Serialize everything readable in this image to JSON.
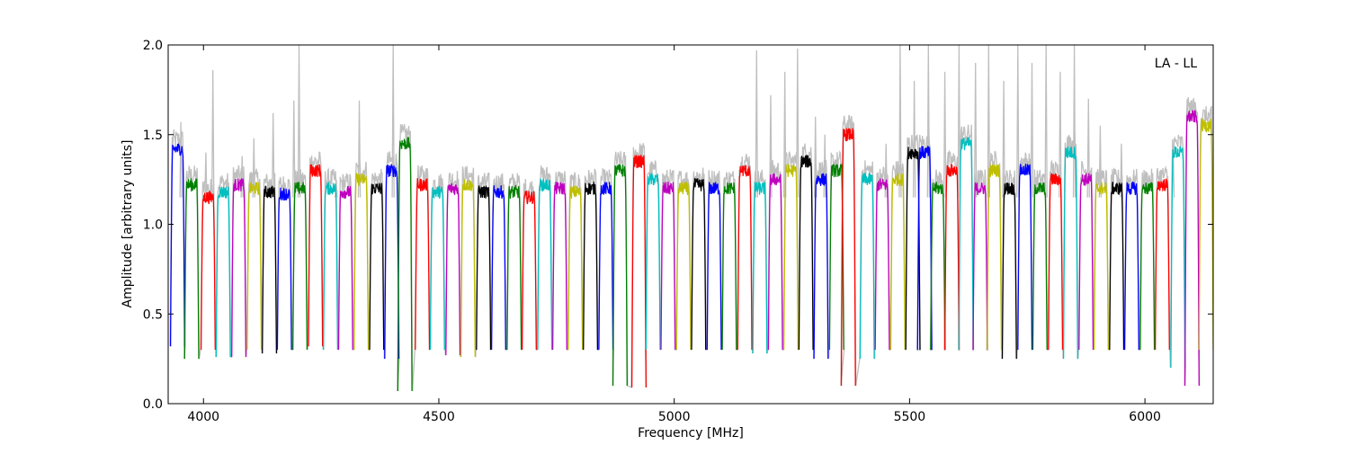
{
  "chart_data": {
    "type": "line",
    "title": "",
    "annotation": "LA - LL",
    "xlabel": "Frequency [MHz]",
    "ylabel": "Amplitude [arbitrary units]",
    "xlim": [
      3925,
      6145
    ],
    "ylim": [
      0.0,
      2.0
    ],
    "xticks": [
      4000,
      4500,
      5000,
      5500,
      6000
    ],
    "yticks": [
      0.0,
      0.5,
      1.0,
      1.5,
      2.0
    ],
    "xtick_labels": [
      "4000",
      "4500",
      "5000",
      "5500",
      "6000"
    ],
    "ytick_labels": [
      "0.0",
      "0.5",
      "1.0",
      "1.5",
      "2.0"
    ],
    "grid": false,
    "raw_color": "#bfbfbf",
    "series_colors": [
      "#0000ff",
      "#008000",
      "#ff0000",
      "#00bfbf",
      "#bf00bf",
      "#bfbf00",
      "#000000"
    ],
    "channel_width_mhz": 32,
    "channel_centers": [
      3945,
      3975,
      4010,
      4042,
      4075,
      4108,
      4140,
      4172,
      4205,
      4238,
      4270,
      4302,
      4335,
      4368,
      4400,
      4428,
      4465,
      4497,
      4530,
      4562,
      4595,
      4627,
      4660,
      4692,
      4725,
      4757,
      4790,
      4822,
      4855,
      4885,
      4925,
      4955,
      4987,
      5020,
      5052,
      5085,
      5117,
      5150,
      5182,
      5215,
      5248,
      5280,
      5312,
      5345,
      5370,
      5410,
      5442,
      5475,
      5507,
      5532,
      5560,
      5590,
      5620,
      5650,
      5680,
      5712,
      5745,
      5777,
      5810,
      5842,
      5875,
      5907,
      5940,
      5972,
      6005,
      6037,
      6070,
      6100,
      6130
    ],
    "channel_levels": [
      1.42,
      1.22,
      1.15,
      1.18,
      1.22,
      1.2,
      1.18,
      1.17,
      1.2,
      1.3,
      1.2,
      1.18,
      1.25,
      1.2,
      1.3,
      1.45,
      1.22,
      1.18,
      1.2,
      1.22,
      1.18,
      1.18,
      1.18,
      1.15,
      1.22,
      1.2,
      1.18,
      1.2,
      1.2,
      1.3,
      1.35,
      1.25,
      1.2,
      1.2,
      1.22,
      1.2,
      1.2,
      1.3,
      1.2,
      1.25,
      1.3,
      1.35,
      1.25,
      1.3,
      1.5,
      1.25,
      1.22,
      1.25,
      1.4,
      1.4,
      1.2,
      1.3,
      1.45,
      1.2,
      1.3,
      1.2,
      1.3,
      1.2,
      1.25,
      1.4,
      1.25,
      1.2,
      1.2,
      1.2,
      1.2,
      1.22,
      1.4,
      1.6,
      1.55
    ],
    "channel_dips": [
      0.32,
      0.25,
      0.3,
      0.26,
      0.26,
      0.3,
      0.28,
      0.3,
      0.3,
      0.32,
      0.3,
      0.3,
      0.3,
      0.3,
      0.25,
      0.07,
      0.3,
      0.3,
      0.27,
      0.26,
      0.3,
      0.3,
      0.3,
      0.3,
      0.3,
      0.3,
      0.3,
      0.3,
      0.3,
      0.1,
      0.09,
      0.3,
      0.3,
      0.3,
      0.3,
      0.3,
      0.3,
      0.3,
      0.28,
      0.3,
      0.3,
      0.3,
      0.25,
      0.3,
      0.1,
      0.25,
      0.3,
      0.3,
      0.3,
      0.3,
      0.3,
      0.3,
      0.3,
      0.3,
      0.3,
      0.25,
      0.3,
      0.3,
      0.3,
      0.25,
      0.3,
      0.3,
      0.3,
      0.3,
      0.3,
      0.3,
      0.2,
      0.1,
      0.3
    ],
    "raw_spikes": [
      {
        "x": 3952,
        "y": 1.57
      },
      {
        "x": 4005,
        "y": 1.4
      },
      {
        "x": 4020,
        "y": 1.86
      },
      {
        "x": 4082,
        "y": 1.38
      },
      {
        "x": 4107,
        "y": 1.48
      },
      {
        "x": 4148,
        "y": 1.62
      },
      {
        "x": 4192,
        "y": 1.69
      },
      {
        "x": 4203,
        "y": 2.0
      },
      {
        "x": 4282,
        "y": 1.25
      },
      {
        "x": 4331,
        "y": 1.69
      },
      {
        "x": 4403,
        "y": 2.0
      },
      {
        "x": 5175,
        "y": 1.97
      },
      {
        "x": 5205,
        "y": 1.72
      },
      {
        "x": 5235,
        "y": 1.85
      },
      {
        "x": 5262,
        "y": 1.98
      },
      {
        "x": 5300,
        "y": 1.6
      },
      {
        "x": 5320,
        "y": 1.5
      },
      {
        "x": 5450,
        "y": 1.45
      },
      {
        "x": 5480,
        "y": 2.0
      },
      {
        "x": 5510,
        "y": 1.8
      },
      {
        "x": 5540,
        "y": 2.0
      },
      {
        "x": 5575,
        "y": 1.85
      },
      {
        "x": 5605,
        "y": 2.0
      },
      {
        "x": 5640,
        "y": 1.9
      },
      {
        "x": 5668,
        "y": 2.0
      },
      {
        "x": 5700,
        "y": 1.8
      },
      {
        "x": 5730,
        "y": 2.0
      },
      {
        "x": 5760,
        "y": 1.9
      },
      {
        "x": 5790,
        "y": 2.0
      },
      {
        "x": 5820,
        "y": 1.85
      },
      {
        "x": 5850,
        "y": 2.0
      },
      {
        "x": 5880,
        "y": 1.7
      },
      {
        "x": 5905,
        "y": 1.55
      },
      {
        "x": 5950,
        "y": 1.45
      },
      {
        "x": 6060,
        "y": 1.4
      }
    ]
  }
}
